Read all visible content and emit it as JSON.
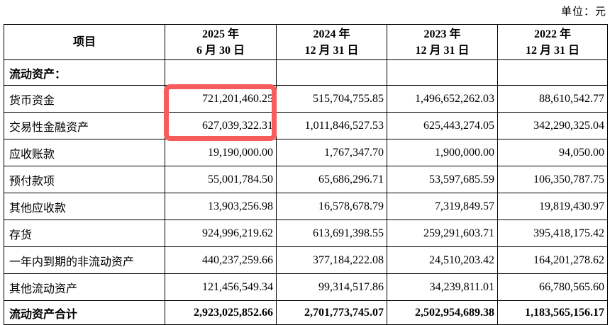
{
  "page": {
    "unit_label": "单位：元"
  },
  "table": {
    "header": {
      "item_label": "项目",
      "periods": [
        {
          "year": "2025 年",
          "date": "6 月 30 日"
        },
        {
          "year": "2024 年",
          "date": "12 月 31 日"
        },
        {
          "year": "2023 年",
          "date": "12 月 31 日"
        },
        {
          "year": "2022 年",
          "date": "12 月 31 日"
        }
      ]
    },
    "section": {
      "label": "流动资产："
    },
    "rows": [
      {
        "label": "货币资金",
        "values": [
          "721,201,460.25",
          "515,704,755.85",
          "1,496,652,262.03",
          "88,610,542.77"
        ]
      },
      {
        "label": "交易性金融资产",
        "values": [
          "627,039,322.31",
          "1,011,846,527.53",
          "625,443,274.05",
          "342,290,325.04"
        ]
      },
      {
        "label": "应收账款",
        "values": [
          "19,190,000.00",
          "1,767,347.70",
          "1,900,000.00",
          "94,050.00"
        ]
      },
      {
        "label": "预付款项",
        "values": [
          "55,001,784.50",
          "65,686,296.71",
          "53,597,685.59",
          "106,350,787.75"
        ]
      },
      {
        "label": "其他应收款",
        "values": [
          "13,903,256.98",
          "16,578,678.79",
          "7,319,849.57",
          "19,819,430.97"
        ]
      },
      {
        "label": "存货",
        "values": [
          "924,996,219.62",
          "613,691,398.55",
          "259,291,603.71",
          "395,418,175.42"
        ]
      },
      {
        "label": "一年内到期的非流动资产",
        "values": [
          "440,237,259.66",
          "377,184,222.08",
          "24,510,203.42",
          "164,201,278.62"
        ]
      },
      {
        "label": "其他流动资产",
        "values": [
          "121,456,549.34",
          "99,314,517.86",
          "34,239,811.01",
          "66,780,565.60"
        ]
      }
    ],
    "total": {
      "label": "流动资产合计",
      "values": [
        "2,923,025,852.66",
        "2,701,773,745.07",
        "2,502,954,689.38",
        "1,183,565,156.17"
      ]
    }
  },
  "annotation": {
    "color": "#f85b5b"
  }
}
